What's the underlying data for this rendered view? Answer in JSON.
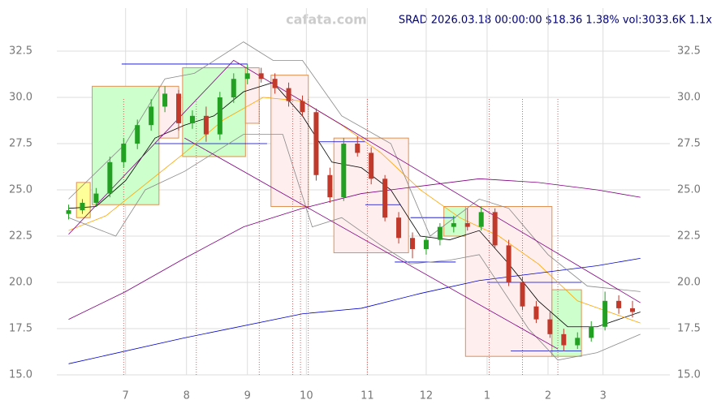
{
  "chart_data": {
    "type": "candlestick",
    "watermark": "cafata.com",
    "title": "SRAD 2026.03.18 00:00:00 $18.36 1.38% vol:3033.6K 1.1x",
    "xlim": [
      -5,
      307
    ],
    "xticks": [
      {
        "value": 30,
        "label": "7"
      },
      {
        "value": 61,
        "label": "8"
      },
      {
        "value": 92,
        "label": "9"
      },
      {
        "value": 122,
        "label": "10"
      },
      {
        "value": 153,
        "label": "11"
      },
      {
        "value": 183,
        "label": "12"
      },
      {
        "value": 214,
        "label": "1"
      },
      {
        "value": 245,
        "label": "2"
      },
      {
        "value": 273,
        "label": "3"
      }
    ],
    "ylim": [
      15,
      32.5
    ],
    "yticks": [
      {
        "value": 15,
        "label": "15.0"
      },
      {
        "value": 17.5,
        "label": "17.5"
      },
      {
        "value": 20,
        "label": "20.0"
      },
      {
        "value": 22.5,
        "label": "22.5"
      },
      {
        "value": 25,
        "label": "25.0"
      },
      {
        "value": 27.5,
        "label": "27.5"
      },
      {
        "value": 30,
        "label": "30.0"
      },
      {
        "value": 32.5,
        "label": "32.5"
      }
    ],
    "grid": true,
    "x": [
      1,
      8,
      15,
      22,
      29,
      36,
      43,
      50,
      57,
      64,
      71,
      78,
      85,
      92,
      99,
      106,
      113,
      120,
      127,
      134,
      141,
      148,
      155,
      162,
      169,
      176,
      183,
      190,
      197,
      204,
      211,
      218,
      225,
      232,
      239,
      246,
      253,
      260,
      267,
      274,
      281,
      288
    ],
    "open": [
      23.7,
      23.9,
      24.3,
      24.8,
      26.5,
      27.5,
      28.5,
      29.5,
      30.2,
      28.6,
      29.0,
      28.0,
      30.0,
      31.0,
      31.3,
      31.0,
      30.5,
      29.8,
      29.2,
      25.8,
      24.6,
      27.5,
      27.0,
      25.6,
      23.5,
      22.4,
      21.8,
      22.3,
      23.0,
      23.2,
      23.0,
      23.8,
      22.0,
      20.0,
      18.7,
      18.0,
      17.2,
      16.6,
      17.0,
      17.6,
      19.0,
      18.6
    ],
    "high": [
      24.2,
      24.5,
      25.1,
      26.8,
      27.8,
      28.8,
      29.9,
      30.6,
      30.4,
      29.3,
      29.5,
      30.3,
      31.3,
      31.8,
      31.6,
      31.3,
      30.8,
      30.1,
      29.4,
      26.2,
      27.8,
      27.9,
      27.3,
      25.8,
      23.8,
      22.7,
      22.5,
      23.2,
      23.6,
      24.0,
      24.1,
      24.0,
      22.3,
      20.3,
      19.0,
      18.4,
      17.5,
      17.3,
      17.9,
      19.5,
      19.3,
      19.0
    ],
    "low": [
      23.4,
      23.7,
      24.1,
      24.6,
      26.2,
      27.2,
      28.2,
      29.2,
      28.2,
      28.3,
      27.6,
      27.7,
      29.7,
      30.7,
      30.8,
      30.2,
      29.5,
      29.0,
      25.5,
      24.3,
      24.4,
      26.8,
      25.3,
      23.3,
      22.1,
      21.3,
      21.5,
      22.0,
      22.7,
      22.8,
      22.8,
      21.8,
      19.8,
      18.5,
      17.8,
      17.0,
      16.3,
      16.4,
      16.8,
      17.4,
      18.3,
      18.1
    ],
    "close": [
      23.9,
      24.3,
      24.8,
      26.5,
      27.5,
      28.5,
      29.5,
      30.2,
      28.6,
      29.0,
      28.0,
      30.0,
      31.0,
      31.3,
      31.0,
      30.5,
      29.8,
      29.2,
      25.8,
      24.6,
      27.5,
      27.0,
      25.6,
      23.5,
      22.4,
      21.8,
      22.3,
      23.0,
      23.2,
      23.0,
      23.8,
      22.0,
      20.0,
      18.7,
      18.0,
      17.2,
      16.6,
      17.0,
      17.6,
      19.0,
      18.6,
      18.4
    ],
    "up_color": "#22a022",
    "down_color": "#c0392b",
    "boxes": [
      {
        "x0": 5,
        "x1": 12,
        "y0": 23.5,
        "y1": 25.4,
        "color": "#ffff99"
      },
      {
        "x0": 13,
        "x1": 47,
        "y0": 24.2,
        "y1": 30.6,
        "color": "#ccffcc"
      },
      {
        "x0": 47,
        "x1": 57,
        "y0": 27.8,
        "y1": 30.6,
        "color": "#ffeeee"
      },
      {
        "x0": 59,
        "x1": 91,
        "y0": 26.8,
        "y1": 31.6,
        "color": "#ccffcc"
      },
      {
        "x0": 91,
        "x1": 98,
        "y0": 28.6,
        "y1": 31.6,
        "color": "#ffeeee"
      },
      {
        "x0": 104,
        "x1": 123,
        "y0": 24.1,
        "y1": 31.2,
        "color": "#ffeeee"
      },
      {
        "x0": 136,
        "x1": 174,
        "y0": 21.6,
        "y1": 27.8,
        "color": "#ffeeee"
      },
      {
        "x0": 192,
        "x1": 204,
        "y0": 22.5,
        "y1": 24.1,
        "color": "#ccffcc"
      },
      {
        "x0": 203,
        "x1": 247,
        "y0": 16.0,
        "y1": 24.1,
        "color": "#ffeeee"
      },
      {
        "x0": 247,
        "x1": 262,
        "y0": 16.0,
        "y1": 19.6,
        "color": "#ccffcc"
      }
    ],
    "lines": [
      {
        "color": "#000000",
        "x": [
          1,
          15,
          30,
          45,
          60,
          75,
          90,
          105,
          120,
          135,
          150,
          165,
          180,
          195,
          210,
          225,
          240,
          255,
          270,
          292
        ],
        "values": [
          24,
          24.1,
          25.5,
          27.8,
          28.5,
          29.0,
          30.3,
          30.8,
          29.0,
          26.5,
          26.2,
          25.0,
          22.5,
          22.3,
          22.8,
          21.0,
          19.0,
          17.6,
          17.6,
          18.4
        ]
      },
      {
        "color": "#ffa500",
        "x": [
          1,
          20,
          40,
          60,
          80,
          100,
          120,
          140,
          160,
          180,
          200,
          220,
          240,
          260,
          292
        ],
        "values": [
          22.8,
          23.6,
          25.3,
          27.0,
          28.8,
          30.0,
          29.8,
          28.5,
          27.0,
          25.0,
          23.5,
          22.5,
          21.0,
          19.0,
          17.8
        ]
      },
      {
        "color": "#800080",
        "x": [
          1,
          30,
          60,
          90,
          120,
          150,
          180,
          210,
          240,
          270,
          292
        ],
        "values": [
          18,
          19.5,
          21.3,
          23,
          24.0,
          24.8,
          25.2,
          25.6,
          25.4,
          25.0,
          24.6
        ]
      },
      {
        "color": "#0000cc",
        "x": [
          1,
          60,
          120,
          150,
          180,
          210,
          240,
          270,
          292
        ],
        "values": [
          15.6,
          17.0,
          18.3,
          18.6,
          19.4,
          20.1,
          20.5,
          20.9,
          21.3
        ]
      },
      {
        "color": "#888888",
        "x": [
          1,
          30,
          50,
          65,
          90,
          105,
          120,
          140,
          165,
          185,
          210,
          225,
          245,
          265,
          292
        ],
        "values": [
          24.5,
          27.5,
          31,
          31.3,
          33.0,
          32.0,
          32.0,
          29.0,
          27.5,
          22.5,
          24.5,
          24.0,
          21.5,
          19.8,
          19.5
        ]
      },
      {
        "color": "#888888",
        "x": [
          1,
          25,
          40,
          60,
          90,
          110,
          125,
          140,
          160,
          175,
          195,
          210,
          235,
          250,
          270,
          292
        ],
        "values": [
          23.5,
          22.5,
          25,
          26,
          28,
          28,
          23,
          23.5,
          22,
          21,
          21.2,
          21.5,
          17.5,
          15.8,
          16.2,
          17.2
        ]
      },
      {
        "color": "#800080",
        "x": [
          1,
          85,
          292
        ],
        "values": [
          22.6,
          32.0,
          18.9
        ]
      },
      {
        "color": "#800080",
        "x": [
          60,
          250
        ],
        "values": [
          27.8,
          16.4
        ]
      }
    ],
    "levels": [
      {
        "x0": 28,
        "x1": 92,
        "y": 31.8
      },
      {
        "x0": 45,
        "x1": 102,
        "y": 27.5
      },
      {
        "x0": 127,
        "x1": 152,
        "y": 27.6
      },
      {
        "x0": 152,
        "x1": 170,
        "y": 24.2
      },
      {
        "x0": 167,
        "x1": 198,
        "y": 21.1
      },
      {
        "x0": 175,
        "x1": 198,
        "y": 23.5
      },
      {
        "x0": 214,
        "x1": 262,
        "y": 20.0
      },
      {
        "x0": 226,
        "x1": 262,
        "y": 16.3
      }
    ],
    "vlines": [
      29,
      66,
      98,
      115,
      119,
      123,
      153,
      215,
      232,
      250
    ]
  }
}
